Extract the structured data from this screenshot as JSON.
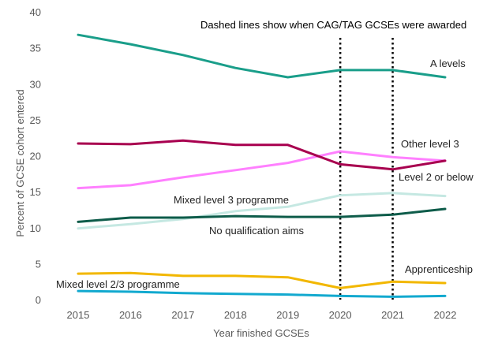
{
  "chart_data": {
    "type": "line",
    "x": [
      2015,
      2016,
      2017,
      2018,
      2019,
      2020,
      2021,
      2022
    ],
    "xlabel": "Year finished GCSEs",
    "ylabel": "Percent of GCSE cohort entered",
    "ylim": [
      0,
      40
    ],
    "yticks": [
      0,
      5,
      10,
      15,
      20,
      25,
      30,
      35,
      40
    ],
    "grid": false,
    "annotation": "Dashed lines show when CAG/TAG GCSEs were awarded",
    "dashed_years": [
      2020,
      2021
    ],
    "series": [
      {
        "name": "A levels",
        "color": "#1a9e8a",
        "values": [
          36.8,
          35.5,
          34.0,
          32.2,
          30.9,
          31.9,
          31.9,
          30.9
        ]
      },
      {
        "name": "Other level 3",
        "color": "#ff80ff",
        "values": [
          15.5,
          15.9,
          17.0,
          18.0,
          19.0,
          20.6,
          19.8,
          19.3
        ]
      },
      {
        "name": "Level 2 or below",
        "color": "#a8004f",
        "values": [
          21.7,
          21.6,
          22.1,
          21.5,
          21.5,
          18.8,
          18.1,
          19.3
        ]
      },
      {
        "name": "Mixed level 3 programme",
        "color": "#c5e8e2",
        "values": [
          9.9,
          10.5,
          11.2,
          12.3,
          12.9,
          14.5,
          14.8,
          14.4
        ]
      },
      {
        "name": "No qualification aims",
        "color": "#0e5c4a",
        "values": [
          10.8,
          11.4,
          11.4,
          11.6,
          11.5,
          11.5,
          11.8,
          12.6
        ]
      },
      {
        "name": "Apprenticeship",
        "color": "#f2b700",
        "values": [
          3.6,
          3.7,
          3.3,
          3.3,
          3.1,
          1.6,
          2.5,
          2.3
        ]
      },
      {
        "name": "Mixed level 2/3 programme",
        "color": "#12a9cf",
        "values": [
          1.2,
          1.1,
          0.9,
          0.8,
          0.7,
          0.5,
          0.4,
          0.5
        ]
      }
    ]
  }
}
